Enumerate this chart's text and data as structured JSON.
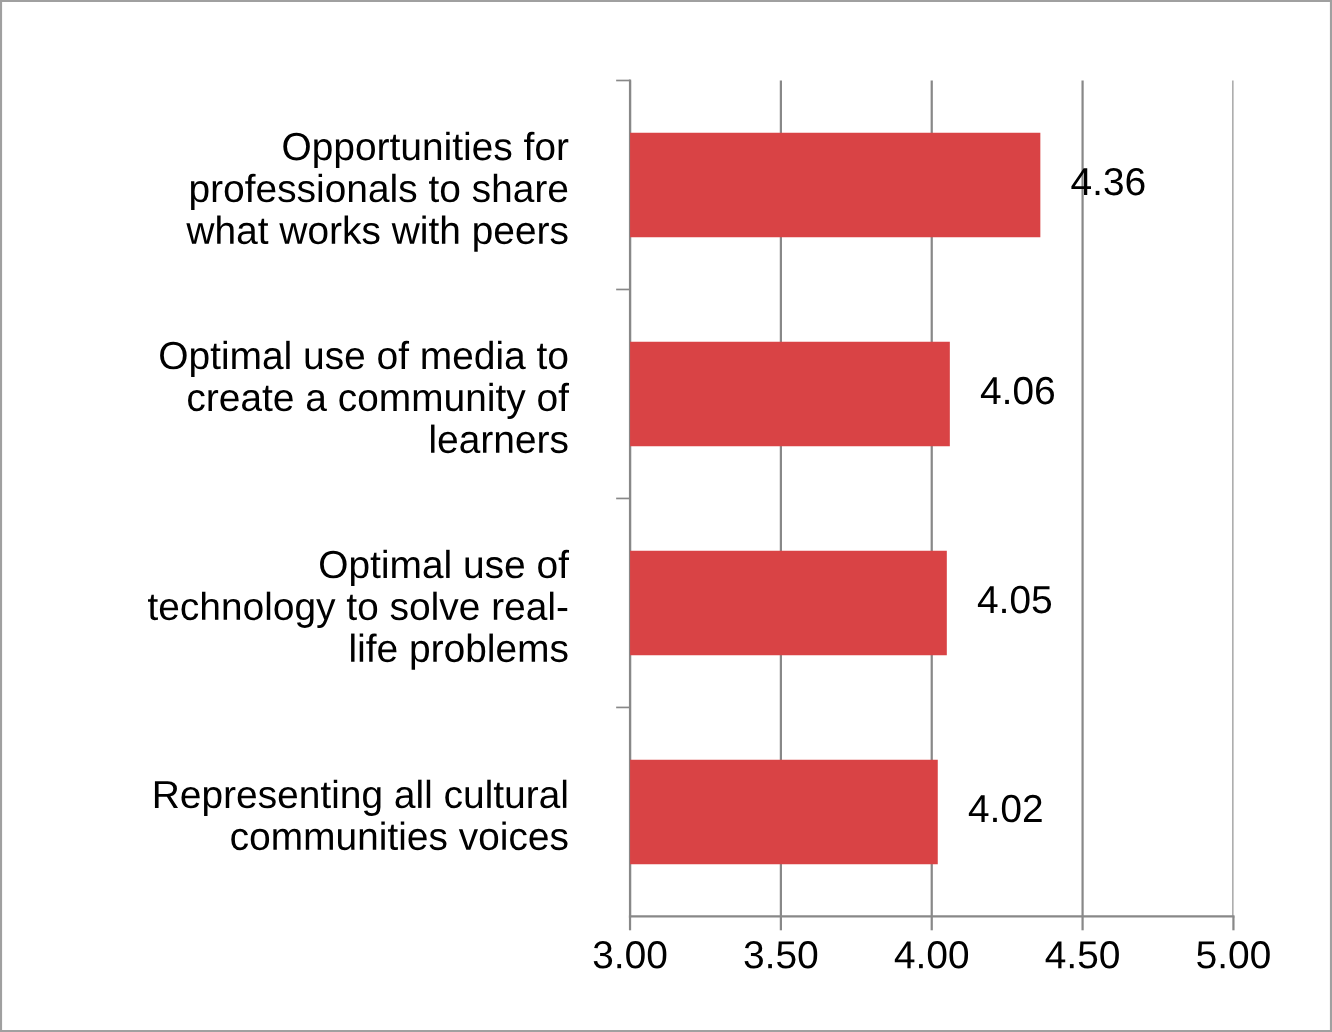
{
  "chart_data": {
    "type": "bar",
    "orientation": "horizontal",
    "categories": [
      "Opportunities for\nprofessionals to share\nwhat works with peers",
      "Optimal use of media to\ncreate a community of\nlearners",
      "Optimal use of\ntechnology to solve real-\nlife problems",
      "Representing all cultural\ncommunities voices"
    ],
    "values": [
      4.36,
      4.06,
      4.05,
      4.02
    ],
    "color": "#d94345",
    "xlim": [
      3.0,
      5.0
    ],
    "xticks": [
      {
        "value": 3.0,
        "label": "3.00"
      },
      {
        "value": 3.5,
        "label": "3.50"
      },
      {
        "value": 4.0,
        "label": "4.00"
      },
      {
        "value": 4.5,
        "label": "4.50"
      },
      {
        "value": 5.0,
        "label": "5.00"
      }
    ],
    "grid": "x",
    "data_labels": true
  }
}
